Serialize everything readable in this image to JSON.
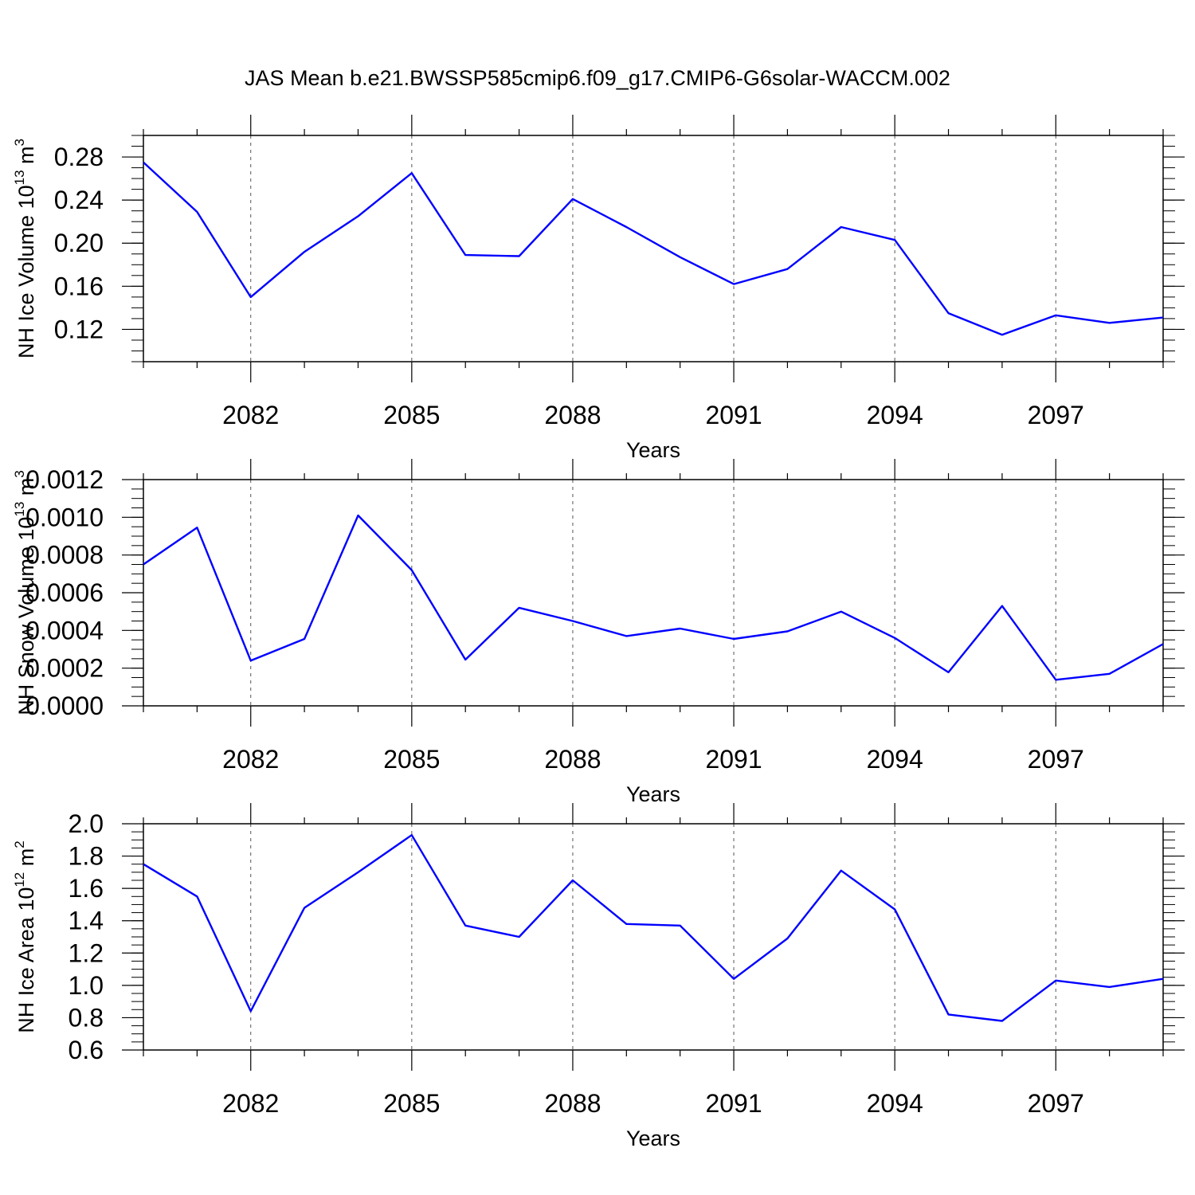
{
  "figure_title": "JAS Mean b.e21.BWSSP585cmip6.f09_g17.CMIP6-G6solar-WACCM.002",
  "colors": {
    "line": "#0000ff",
    "axes": "#000000",
    "grid": "#555555",
    "background": "#ffffff"
  },
  "chart_data": [
    {
      "type": "line",
      "title": "",
      "ylabel": {
        "text": "NH Ice Volume 10",
        "exponent": "13",
        "unit": " m",
        "unit_exponent": "3"
      },
      "xlabel": "Years",
      "xlim": [
        2080,
        2099
      ],
      "ylim": [
        0.09,
        0.3
      ],
      "x_ticks": [
        2082,
        2085,
        2088,
        2091,
        2094,
        2097
      ],
      "x_tick_labels": [
        "2082",
        "2085",
        "2088",
        "2091",
        "2094",
        "2097"
      ],
      "y_ticks": [
        0.12,
        0.16,
        0.2,
        0.24,
        0.28
      ],
      "y_tick_labels": [
        "0.12",
        "0.16",
        "0.20",
        "0.24",
        "0.28"
      ],
      "y_minor_step": 0.01,
      "grid": "vertical-dashed-at-major-x",
      "x": [
        2080,
        2081,
        2082,
        2083,
        2084,
        2085,
        2086,
        2087,
        2088,
        2089,
        2090,
        2091,
        2092,
        2093,
        2094,
        2095,
        2096,
        2097,
        2098,
        2099
      ],
      "series": [
        {
          "values": [
            0.275,
            0.229,
            0.15,
            0.192,
            0.225,
            0.265,
            0.189,
            0.188,
            0.241,
            0.215,
            0.187,
            0.162,
            0.176,
            0.215,
            0.203,
            0.135,
            0.115,
            0.133,
            0.126,
            0.131
          ]
        }
      ]
    },
    {
      "type": "line",
      "title": "",
      "ylabel": {
        "text": "NH Snow Volume 10",
        "exponent": "13",
        "unit": " m",
        "unit_exponent": "3"
      },
      "xlabel": "Years",
      "xlim": [
        2080,
        2099
      ],
      "ylim": [
        0.0,
        0.0012
      ],
      "x_ticks": [
        2082,
        2085,
        2088,
        2091,
        2094,
        2097
      ],
      "x_tick_labels": [
        "2082",
        "2085",
        "2088",
        "2091",
        "2094",
        "2097"
      ],
      "y_ticks": [
        0.0,
        0.0002,
        0.0004,
        0.0006,
        0.0008,
        0.001,
        0.0012
      ],
      "y_tick_labels": [
        "0.0000",
        "0.0002",
        "0.0004",
        "0.0006",
        "0.0008",
        "0.0010",
        "0.0012"
      ],
      "y_minor_step": 5e-05,
      "grid": "vertical-dashed-at-major-x",
      "x": [
        2080,
        2081,
        2082,
        2083,
        2084,
        2085,
        2086,
        2087,
        2088,
        2089,
        2090,
        2091,
        2092,
        2093,
        2094,
        2095,
        2096,
        2097,
        2098,
        2099
      ],
      "series": [
        {
          "values": [
            0.00075,
            0.000945,
            0.00024,
            0.000355,
            0.00101,
            0.00072,
            0.000245,
            0.00052,
            0.00045,
            0.00037,
            0.00041,
            0.000355,
            0.000395,
            0.0005,
            0.00036,
            0.000178,
            0.00053,
            0.000138,
            0.00017,
            0.000328
          ]
        }
      ]
    },
    {
      "type": "line",
      "title": "",
      "ylabel": {
        "text": "NH Ice Area 10",
        "exponent": "12",
        "unit": " m",
        "unit_exponent": "2"
      },
      "xlabel": "Years",
      "xlim": [
        2080,
        2099
      ],
      "ylim": [
        0.6,
        2.0
      ],
      "x_ticks": [
        2082,
        2085,
        2088,
        2091,
        2094,
        2097
      ],
      "x_tick_labels": [
        "2082",
        "2085",
        "2088",
        "2091",
        "2094",
        "2097"
      ],
      "y_ticks": [
        0.6,
        0.8,
        1.0,
        1.2,
        1.4,
        1.6,
        1.8,
        2.0
      ],
      "y_tick_labels": [
        "0.6",
        "0.8",
        "1.0",
        "1.2",
        "1.4",
        "1.6",
        "1.8",
        "2.0"
      ],
      "y_minor_step": 0.05,
      "grid": "vertical-dashed-at-major-x",
      "x": [
        2080,
        2081,
        2082,
        2083,
        2084,
        2085,
        2086,
        2087,
        2088,
        2089,
        2090,
        2091,
        2092,
        2093,
        2094,
        2095,
        2096,
        2097,
        2098,
        2099
      ],
      "series": [
        {
          "values": [
            1.75,
            1.55,
            0.84,
            1.48,
            1.7,
            1.93,
            1.37,
            1.3,
            1.65,
            1.38,
            1.37,
            1.04,
            1.29,
            1.71,
            1.47,
            0.82,
            0.78,
            1.03,
            0.99,
            1.04
          ]
        }
      ]
    }
  ]
}
